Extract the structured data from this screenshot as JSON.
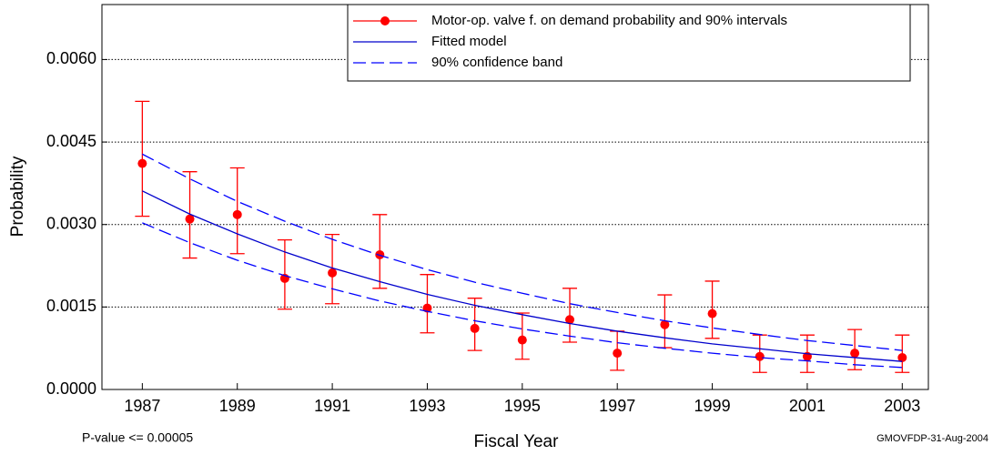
{
  "chart_data": {
    "type": "scatter",
    "x_label": "Fiscal Year",
    "y_label": "Probability",
    "annotations": [
      "P-value <= 0.00005",
      "GMOVFDP-31-Aug-2004"
    ],
    "x": [
      1987,
      1988,
      1989,
      1990,
      1991,
      1992,
      1993,
      1994,
      1995,
      1996,
      1997,
      1998,
      1999,
      2000,
      2001,
      2002,
      2003
    ],
    "xlim": [
      1986.15,
      2003.55
    ],
    "xticks": [
      1987,
      1989,
      1991,
      1993,
      1995,
      1997,
      1999,
      2001,
      2003
    ],
    "ylim": [
      0,
      0.007
    ],
    "yticks": [
      {
        "value": 0,
        "label": "0.0000"
      },
      {
        "value": 0.0015,
        "label": "0.0015"
      },
      {
        "value": 0.003,
        "label": "0.0030"
      },
      {
        "value": 0.0045,
        "label": "0.0045"
      },
      {
        "value": 0.006,
        "label": "0.0060"
      }
    ],
    "grid": true,
    "legend": "top-right",
    "series": [
      {
        "name": "Motor-op. valve f. on demand probability and 90% intervals",
        "color": "#ff0000",
        "style": "points",
        "values": [
          0.00411,
          0.0031,
          0.00318,
          0.00202,
          0.00212,
          0.00245,
          0.00148,
          0.00111,
          0.0009,
          0.00127,
          0.00066,
          0.00118,
          0.00138,
          0.0006,
          0.0006,
          0.00066,
          0.00058
        ],
        "lower": [
          0.00315,
          0.00239,
          0.00247,
          0.00146,
          0.00156,
          0.00184,
          0.00103,
          0.00071,
          0.00055,
          0.00086,
          0.00035,
          0.00076,
          0.00093,
          0.00031,
          0.00031,
          0.00036,
          0.00031
        ],
        "upper": [
          0.00524,
          0.00396,
          0.00403,
          0.00272,
          0.00282,
          0.00318,
          0.00209,
          0.00166,
          0.00139,
          0.00184,
          0.00106,
          0.00172,
          0.00197,
          0.00099,
          0.00099,
          0.00109,
          0.00099
        ]
      },
      {
        "name": "Fitted model",
        "color": "#0000cc",
        "style": "solid",
        "values": [
          0.00361,
          0.00319,
          0.00283,
          0.0025,
          0.00221,
          0.00196,
          0.00173,
          0.00153,
          0.00136,
          0.0012,
          0.00106,
          0.00094,
          0.00083,
          0.00074,
          0.00065,
          0.00058,
          0.00051
        ]
      },
      {
        "name": "90% confidence band",
        "color": "#0000ff",
        "style": "dashed",
        "upper": [
          0.00428,
          0.00383,
          0.00342,
          0.00306,
          0.00273,
          0.00244,
          0.00218,
          0.00195,
          0.00175,
          0.00156,
          0.0014,
          0.00125,
          0.00112,
          0.001,
          0.00089,
          0.0008,
          0.00071
        ],
        "lower": [
          0.00303,
          0.00267,
          0.00235,
          0.00207,
          0.00183,
          0.00161,
          0.00142,
          0.00125,
          0.0011,
          0.00097,
          0.00085,
          0.00075,
          0.00066,
          0.00058,
          0.00052,
          0.00045,
          0.0004
        ]
      }
    ]
  }
}
